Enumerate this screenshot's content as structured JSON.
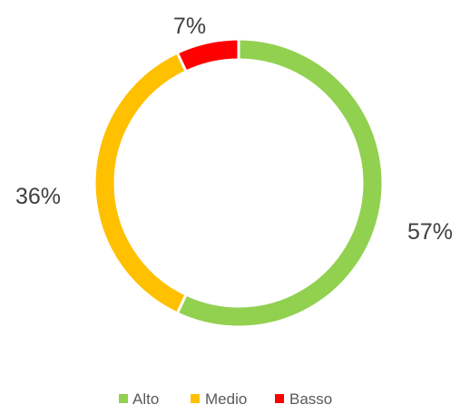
{
  "chart_data": {
    "type": "pie",
    "variant": "donut",
    "categories": [
      "Alto",
      "Medio",
      "Basso"
    ],
    "values": [
      57,
      36,
      7
    ],
    "labels": [
      "57%",
      "36%",
      "7%"
    ],
    "colors": [
      "#92d050",
      "#ffc000",
      "#ff0000"
    ],
    "start": "top, clockwise",
    "legend": {
      "placement": "bottom",
      "order": [
        "Alto",
        "Medio",
        "Basso"
      ]
    }
  }
}
